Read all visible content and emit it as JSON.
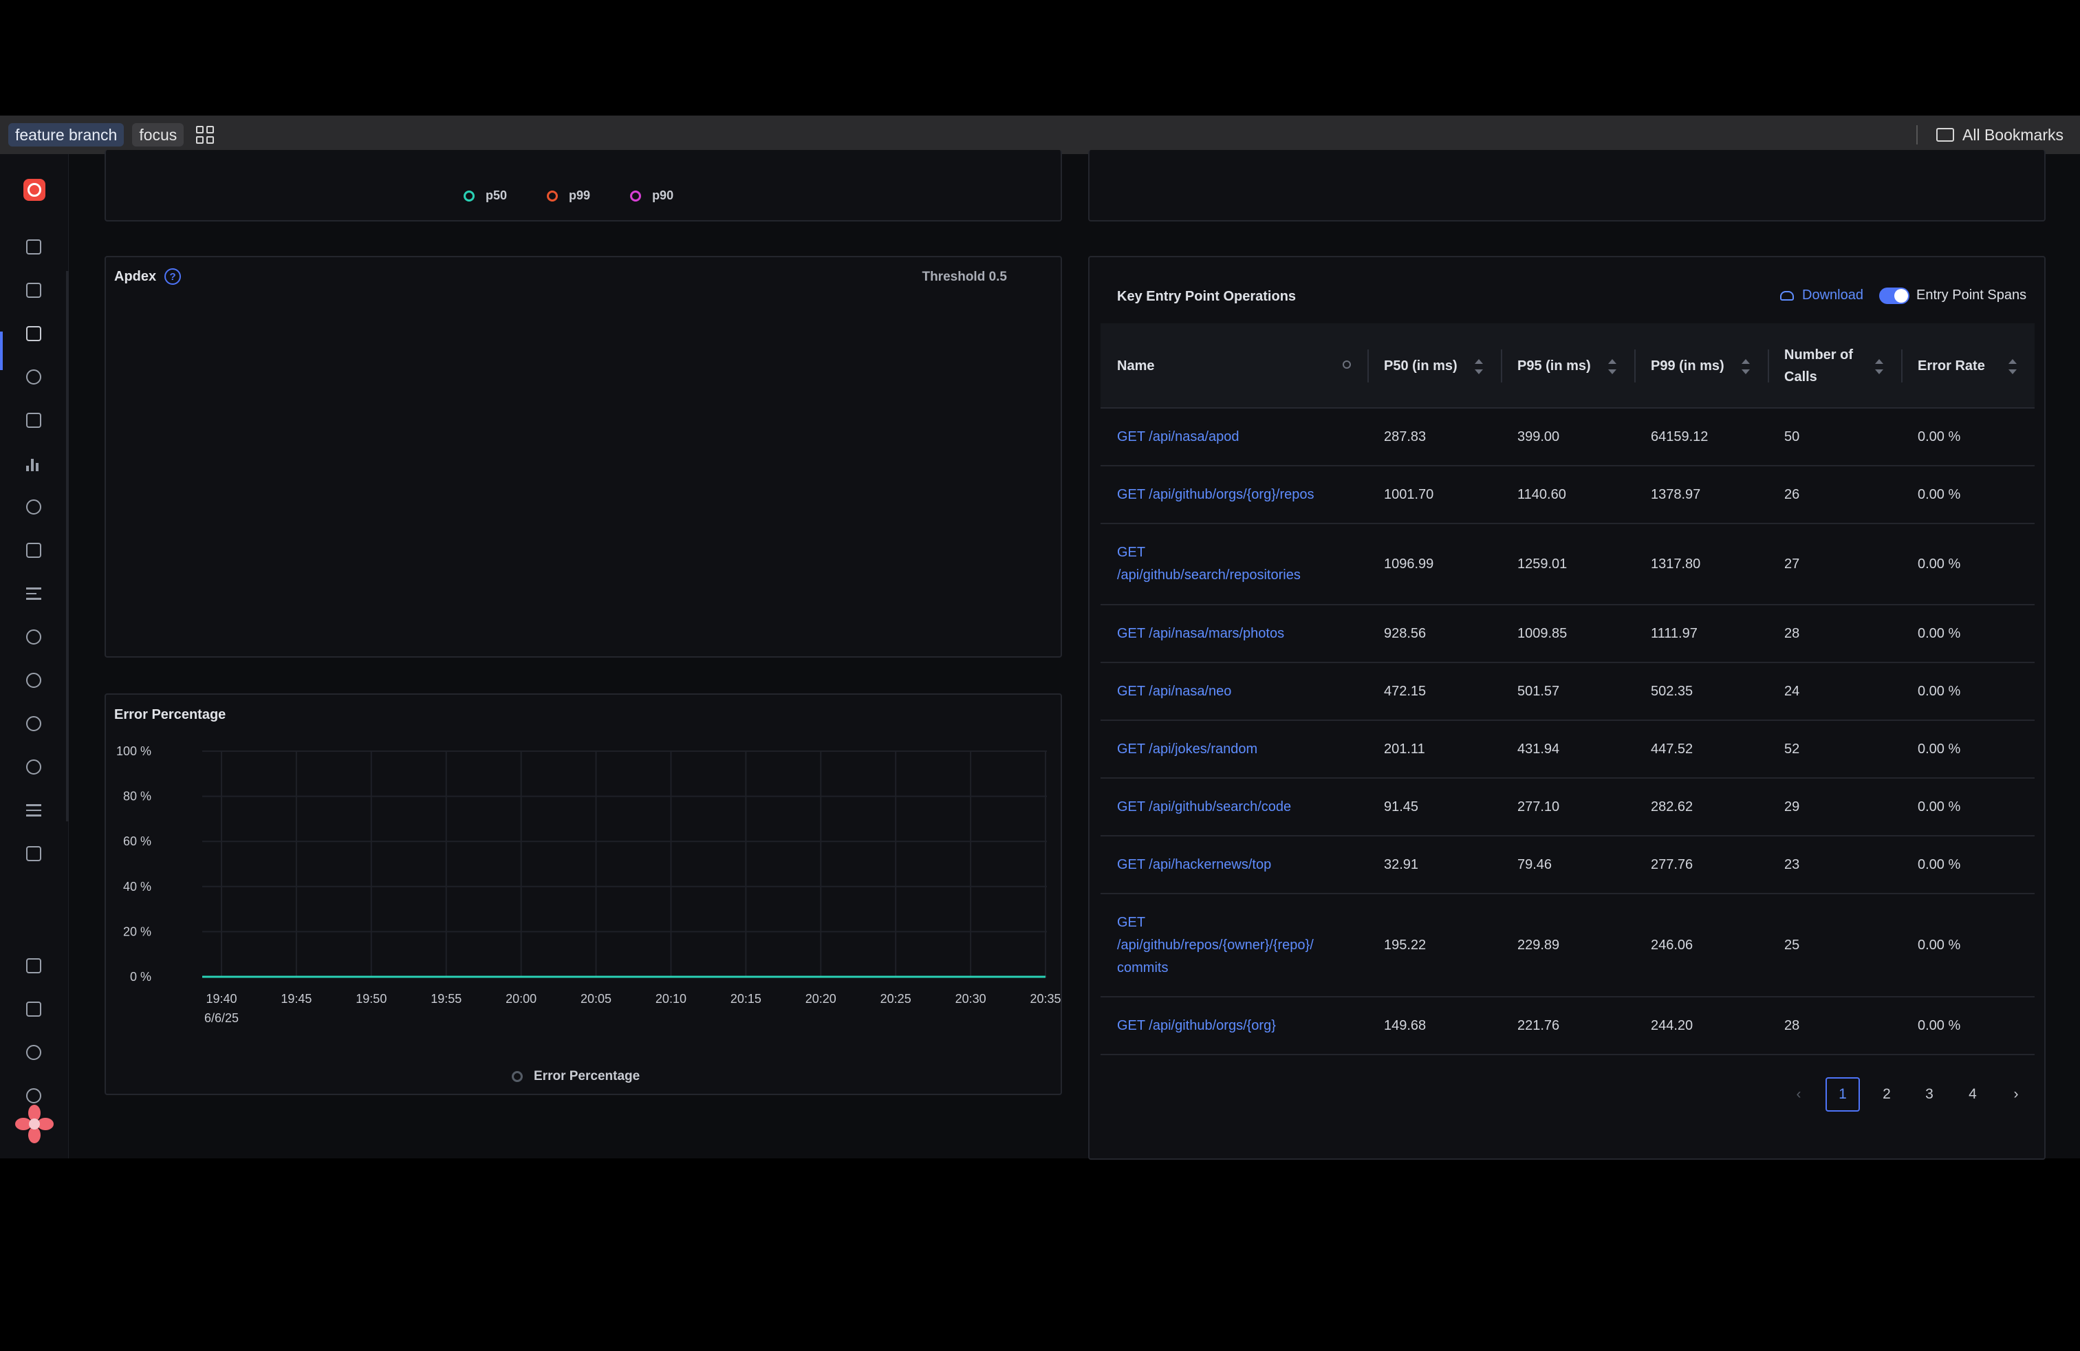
{
  "bookmarks_bar": {
    "chips": [
      "feature branch",
      "focus"
    ],
    "all_bookmarks_label": "All Bookmarks"
  },
  "top_legend": {
    "items": [
      {
        "label": "p50",
        "color": "#2ad1b5"
      },
      {
        "label": "p99",
        "color": "#e8542e"
      },
      {
        "label": "p90",
        "color": "#d63fd3"
      }
    ]
  },
  "apdex": {
    "title": "Apdex",
    "threshold_label": "Threshold 0.5"
  },
  "error_chart": {
    "title": "Error Percentage",
    "legend": "Error Percentage",
    "y_ticks": [
      "100 %",
      "80 %",
      "60 %",
      "40 %",
      "20 %",
      "0 %"
    ],
    "x_ticks": [
      "19:40",
      "19:45",
      "19:50",
      "19:55",
      "20:00",
      "20:05",
      "20:10",
      "20:15",
      "20:20",
      "20:25",
      "20:30",
      "20:35"
    ],
    "x_sublabel": "6/6/25"
  },
  "chart_data": {
    "type": "line",
    "title": "Error Percentage",
    "x": [
      "19:40",
      "19:45",
      "19:50",
      "19:55",
      "20:00",
      "20:05",
      "20:10",
      "20:15",
      "20:20",
      "20:25",
      "20:30",
      "20:35"
    ],
    "series": [
      {
        "name": "Error Percentage",
        "values": [
          0,
          0,
          0,
          0,
          0,
          0,
          0,
          0,
          0,
          0,
          0,
          0
        ],
        "color": "#2ad1b5"
      }
    ],
    "ylim": [
      0,
      100
    ],
    "grid": true,
    "legend": "bottom-center"
  },
  "operations": {
    "title": "Key Entry Point Operations",
    "download_label": "Download",
    "toggle_label": "Entry Point Spans",
    "columns": [
      "Name",
      "P50 (in ms)",
      "P95 (in ms)",
      "P99 (in ms)",
      "Number of\nCalls",
      "Error Rate"
    ],
    "rows": [
      {
        "name": "GET /api/nasa/apod",
        "p50": "287.83",
        "p95": "399.00",
        "p99": "64159.12",
        "calls": "50",
        "error": "0.00 %"
      },
      {
        "name": "GET /api/github/orgs/{org}/repos",
        "p50": "1001.70",
        "p95": "1140.60",
        "p99": "1378.97",
        "calls": "26",
        "error": "0.00 %"
      },
      {
        "name": "GET\n/api/github/search/repositories",
        "p50": "1096.99",
        "p95": "1259.01",
        "p99": "1317.80",
        "calls": "27",
        "error": "0.00 %"
      },
      {
        "name": "GET /api/nasa/mars/photos",
        "p50": "928.56",
        "p95": "1009.85",
        "p99": "1111.97",
        "calls": "28",
        "error": "0.00 %"
      },
      {
        "name": "GET /api/nasa/neo",
        "p50": "472.15",
        "p95": "501.57",
        "p99": "502.35",
        "calls": "24",
        "error": "0.00 %"
      },
      {
        "name": "GET /api/jokes/random",
        "p50": "201.11",
        "p95": "431.94",
        "p99": "447.52",
        "calls": "52",
        "error": "0.00 %"
      },
      {
        "name": "GET /api/github/search/code",
        "p50": "91.45",
        "p95": "277.10",
        "p99": "282.62",
        "calls": "29",
        "error": "0.00 %"
      },
      {
        "name": "GET /api/hackernews/top",
        "p50": "32.91",
        "p95": "79.46",
        "p99": "277.76",
        "calls": "23",
        "error": "0.00 %"
      },
      {
        "name": "GET\n/api/github/repos/{owner}/{repo}/\ncommits",
        "p50": "195.22",
        "p95": "229.89",
        "p99": "246.06",
        "calls": "25",
        "error": "0.00 %"
      },
      {
        "name": "GET /api/github/orgs/{org}",
        "p50": "149.68",
        "p95": "221.76",
        "p99": "244.20",
        "calls": "28",
        "error": "0.00 %"
      }
    ],
    "pagination": {
      "pages": [
        "1",
        "2",
        "3",
        "4"
      ],
      "current": "1"
    }
  },
  "icons": {
    "sidebar": [
      "app-logo-icon",
      "cube-icon",
      "home-icon",
      "services-icon",
      "traces-icon",
      "logs-icon",
      "metrics-icon",
      "integrations-icon",
      "dashboards-icon",
      "explorer-icon",
      "binoculars-icon",
      "alerts-icon",
      "rocket-icon",
      "bug-icon",
      "pipelines-icon",
      "billing-icon",
      "layers-icon",
      "chat-icon",
      "invite-user-icon",
      "account-icon"
    ]
  }
}
